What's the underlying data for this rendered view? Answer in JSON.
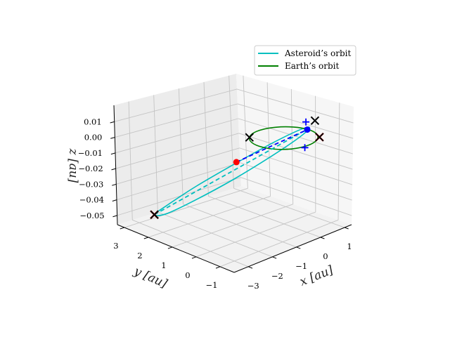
{
  "chart_data": {
    "type": "line",
    "projection": "3d",
    "xlabel": "x [au]",
    "ylabel": "y [au]",
    "zlabel": "z [au]",
    "xlim": [
      -3.59,
      1.29
    ],
    "ylim": [
      -1.59,
      3.29
    ],
    "zlim": [
      -0.0559,
      0.0205
    ],
    "x_ticks": [
      -3,
      -2,
      -1,
      0,
      1
    ],
    "x_tick_labels": [
      "−3",
      "−2",
      "−1",
      "0",
      "1"
    ],
    "y_ticks": [
      3,
      2,
      1,
      0,
      -1
    ],
    "y_tick_labels": [
      "3",
      "2",
      "1",
      "0",
      "−1"
    ],
    "z_ticks": [
      0.01,
      0.0,
      -0.01,
      -0.02,
      -0.03,
      -0.04,
      -0.05
    ],
    "z_tick_labels": [
      "0.01",
      "0.00",
      "−0.01",
      "−0.02",
      "−0.03",
      "−0.04",
      "−0.05"
    ],
    "grid": true,
    "legend": {
      "placement": "top-right",
      "entries": [
        {
          "label": "Asteroid’s orbit",
          "color": "#00bfbf"
        },
        {
          "label": "Earth’s orbit",
          "color": "#008000"
        }
      ]
    },
    "series": [
      {
        "name": "Asteroid’s orbit",
        "color": "#00bfbf",
        "style": "solid",
        "closed": true,
        "points": [
          [
            -2.72,
            2.65,
            -0.05
          ],
          [
            -2.2,
            2.68,
            -0.047
          ],
          [
            -1.33,
            2.34,
            -0.037
          ],
          [
            -0.35,
            1.72,
            -0.024
          ],
          [
            0.47,
            0.99,
            -0.011
          ],
          [
            0.95,
            0.32,
            -0.0015
          ],
          [
            0.95,
            -0.1,
            0.002
          ],
          [
            0.48,
            -0.16,
            -0.0015
          ],
          [
            -0.35,
            0.17,
            -0.011
          ],
          [
            -1.3,
            0.78,
            -0.024
          ],
          [
            -2.15,
            1.52,
            -0.037
          ],
          [
            -2.65,
            2.2,
            -0.047
          ]
        ]
      },
      {
        "name": "Earth’s orbit",
        "color": "#008000",
        "style": "solid",
        "closed": true,
        "points": [
          [
            1,
            0,
            0
          ],
          [
            0.866,
            0.5,
            0
          ],
          [
            0.5,
            0.866,
            0
          ],
          [
            0,
            1,
            0
          ],
          [
            -0.5,
            0.866,
            0
          ],
          [
            -0.866,
            0.5,
            0
          ],
          [
            -1,
            0,
            0
          ],
          [
            -0.866,
            -0.5,
            0
          ],
          [
            -0.5,
            -0.866,
            0
          ],
          [
            0,
            -1,
            0
          ],
          [
            0.5,
            -0.866,
            0
          ],
          [
            0.866,
            -0.5,
            0
          ]
        ]
      }
    ],
    "dashed_lines": [
      {
        "color": "#00bfbf",
        "points": [
          [
            -2.72,
            2.65,
            -0.05
          ],
          [
            0.9,
            -0.06,
            0.001
          ]
        ]
      },
      {
        "color": "#0000ff",
        "points": [
          [
            -0.3,
            1.7,
            -0.023
          ],
          [
            0.88,
            -0.08,
            0.001
          ]
        ]
      }
    ],
    "markers": [
      {
        "shape": "dot",
        "color": "#ff0000",
        "point": [
          -0.3,
          1.7,
          -0.023
        ]
      },
      {
        "shape": "dot",
        "color": "#0000ff",
        "point": [
          0.88,
          -0.08,
          0.001
        ]
      },
      {
        "shape": "x",
        "color": "#000000",
        "point": [
          -0.66,
          0.75,
          0
        ]
      },
      {
        "shape": "x",
        "color": "#000000",
        "point": [
          1.7,
          0.45,
          0
        ]
      },
      {
        "shape": "x",
        "color": "#ff0000",
        "point": [
          0.74,
          -0.74,
          0
        ]
      },
      {
        "shape": "x",
        "color": "#000000",
        "point": [
          0.74,
          -0.74,
          0
        ]
      },
      {
        "shape": "x",
        "color": "#ff0000",
        "point": [
          -2.72,
          2.65,
          -0.05
        ]
      },
      {
        "shape": "x",
        "color": "#000000",
        "point": [
          -2.72,
          2.65,
          -0.05
        ]
      },
      {
        "shape": "plus",
        "color": "#0000ff",
        "point": [
          1.44,
          0.56,
          0
        ]
      },
      {
        "shape": "plus",
        "color": "#0000ff",
        "point": [
          -0.18,
          -1.07,
          0
        ]
      }
    ]
  }
}
